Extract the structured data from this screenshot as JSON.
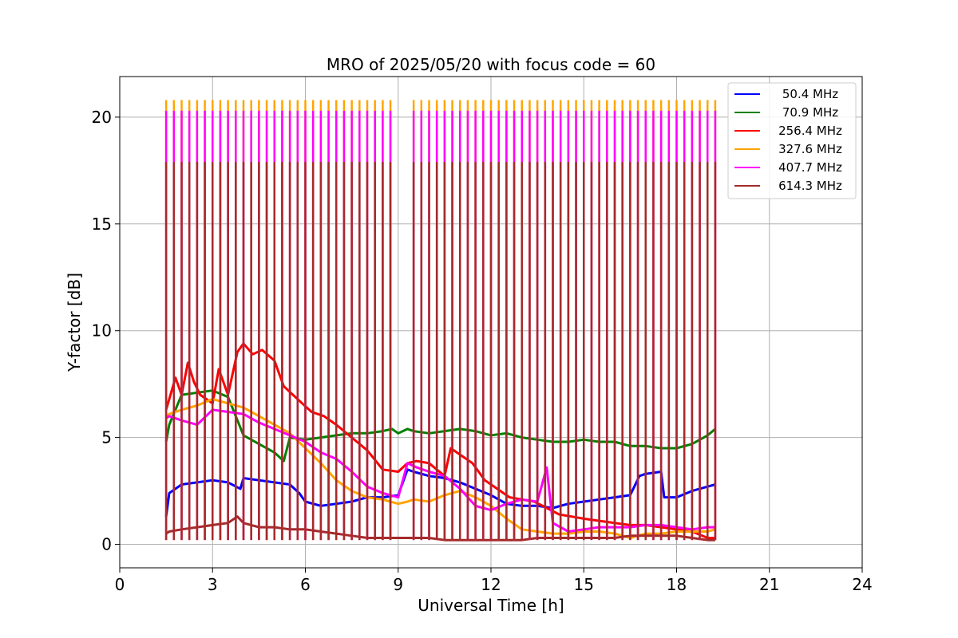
{
  "chart_data": {
    "type": "line",
    "title": "MRO of 2025/05/20 with focus code = 60",
    "xlabel": "Universal Time [h]",
    "ylabel": "Y-factor [dB]",
    "xlim": [
      0,
      24
    ],
    "ylim": [
      -1.1,
      21.9
    ],
    "xticks": [
      0,
      3,
      6,
      9,
      12,
      15,
      18,
      21,
      24
    ],
    "yticks": [
      0,
      5,
      10,
      15,
      20
    ],
    "grid": true,
    "legend_position": "upper-right",
    "spikes": {
      "description_note": "",
      "start_time": 1.5,
      "spacing": 0.25,
      "gap_start": 8.9,
      "gap_end": 9.45,
      "end_time": 19.25,
      "peak_values": {
        "50.4 MHz": 17.9,
        "70.9 MHz": 17.9,
        "256.4 MHz": 17.9,
        "327.6 MHz": 20.8,
        "407.7 MHz": 20.3,
        "614.3 MHz": 17.9
      }
    },
    "series": [
      {
        "name": "  50.4 MHz",
        "color": "#0000ff",
        "x": [
          1.5,
          1.6,
          2.0,
          2.5,
          3.0,
          3.5,
          3.9,
          4.0,
          4.5,
          5.0,
          5.5,
          5.8,
          6.0,
          6.5,
          7.0,
          7.5,
          8.0,
          8.5,
          9.0,
          9.3,
          9.5,
          10.0,
          10.5,
          11.0,
          11.5,
          12.0,
          12.5,
          13.0,
          13.5,
          14.0,
          14.5,
          15.0,
          15.5,
          16.0,
          16.5,
          16.8,
          17.0,
          17.5,
          17.6,
          18.0,
          18.5,
          19.0,
          19.25
        ],
        "y": [
          1.3,
          2.4,
          2.8,
          2.9,
          3.0,
          2.9,
          2.6,
          3.1,
          3.0,
          2.9,
          2.8,
          2.4,
          2.0,
          1.8,
          1.9,
          2.0,
          2.2,
          2.2,
          2.3,
          3.5,
          3.4,
          3.2,
          3.1,
          2.9,
          2.6,
          2.3,
          1.9,
          1.8,
          1.8,
          1.7,
          1.9,
          2.0,
          2.1,
          2.2,
          2.3,
          3.2,
          3.3,
          3.4,
          2.2,
          2.2,
          2.5,
          2.7,
          2.8
        ]
      },
      {
        "name": "  70.9 MHz",
        "color": "#008000",
        "x": [
          1.5,
          1.6,
          2.0,
          2.5,
          3.0,
          3.5,
          4.0,
          4.5,
          5.0,
          5.3,
          5.5,
          6.0,
          6.5,
          7.0,
          7.5,
          8.0,
          8.5,
          8.8,
          9.0,
          9.3,
          9.5,
          10.0,
          10.5,
          11.0,
          11.5,
          12.0,
          12.5,
          13.0,
          13.5,
          14.0,
          14.5,
          15.0,
          15.5,
          16.0,
          16.5,
          17.0,
          17.5,
          18.0,
          18.5,
          19.0,
          19.25
        ],
        "y": [
          4.8,
          5.6,
          7.0,
          7.1,
          7.2,
          6.9,
          5.1,
          4.7,
          4.3,
          3.9,
          5.0,
          4.9,
          5.0,
          5.1,
          5.2,
          5.2,
          5.3,
          5.4,
          5.2,
          5.4,
          5.3,
          5.2,
          5.3,
          5.4,
          5.3,
          5.1,
          5.2,
          5.0,
          4.9,
          4.8,
          4.8,
          4.9,
          4.8,
          4.8,
          4.6,
          4.6,
          4.5,
          4.5,
          4.7,
          5.1,
          5.4
        ]
      },
      {
        "name": "256.4 MHz",
        "color": "#ff0000",
        "x": [
          1.5,
          1.6,
          1.8,
          2.0,
          2.2,
          2.4,
          2.6,
          3.0,
          3.2,
          3.5,
          3.8,
          4.0,
          4.3,
          4.6,
          5.0,
          5.3,
          5.6,
          5.9,
          6.2,
          6.6,
          7.0,
          7.5,
          8.0,
          8.5,
          9.0,
          9.3,
          9.6,
          10.0,
          10.5,
          10.7,
          11.0,
          11.4,
          11.8,
          12.2,
          12.6,
          13.0,
          13.4,
          13.8,
          14.2,
          14.6,
          15.0,
          15.5,
          16.0,
          16.5,
          17.0,
          17.5,
          18.0,
          18.5,
          19.0,
          19.25
        ],
        "y": [
          6.3,
          6.8,
          7.8,
          7.0,
          8.5,
          7.6,
          7.0,
          6.6,
          8.2,
          7.0,
          9.0,
          9.4,
          8.9,
          9.1,
          8.6,
          7.4,
          7.0,
          6.6,
          6.2,
          6.0,
          5.6,
          5.0,
          4.4,
          3.5,
          3.4,
          3.8,
          3.9,
          3.8,
          3.2,
          4.5,
          4.2,
          3.8,
          3.0,
          2.6,
          2.2,
          2.1,
          2.0,
          1.7,
          1.4,
          1.3,
          1.2,
          1.1,
          1.0,
          0.9,
          0.9,
          0.8,
          0.7,
          0.6,
          0.3,
          0.3
        ]
      },
      {
        "name": "327.6 MHz",
        "color": "#ffa500",
        "x": [
          1.5,
          1.6,
          2.0,
          2.5,
          3.0,
          3.5,
          4.0,
          4.5,
          5.0,
          5.5,
          6.0,
          6.5,
          7.0,
          7.5,
          8.0,
          8.5,
          9.0,
          9.3,
          9.5,
          10.0,
          10.5,
          11.0,
          11.5,
          12.0,
          12.5,
          13.0,
          13.5,
          14.0,
          14.5,
          15.0,
          15.5,
          16.0,
          16.5,
          17.0,
          17.5,
          18.0,
          18.5,
          19.0,
          19.25
        ],
        "y": [
          6.0,
          6.1,
          6.3,
          6.5,
          6.8,
          6.6,
          6.4,
          6.0,
          5.6,
          5.2,
          4.5,
          3.8,
          3.0,
          2.5,
          2.2,
          2.1,
          1.9,
          2.0,
          2.1,
          2.0,
          2.3,
          2.5,
          2.2,
          1.8,
          1.2,
          0.7,
          0.6,
          0.5,
          0.5,
          0.6,
          0.6,
          0.5,
          0.3,
          0.5,
          0.5,
          0.6,
          0.6,
          0.6,
          0.7
        ]
      },
      {
        "name": "407.7 MHz",
        "color": "#ff00ff",
        "x": [
          1.5,
          1.6,
          2.0,
          2.5,
          3.0,
          3.5,
          4.0,
          4.5,
          5.0,
          5.5,
          6.0,
          6.5,
          7.0,
          7.5,
          8.0,
          8.5,
          9.0,
          9.3,
          9.6,
          10.0,
          10.5,
          11.0,
          11.5,
          12.0,
          12.5,
          13.0,
          13.5,
          13.8,
          14.0,
          14.5,
          15.0,
          15.5,
          16.0,
          16.5,
          17.0,
          17.5,
          18.0,
          18.5,
          19.0,
          19.25
        ],
        "y": [
          5.9,
          6.0,
          5.8,
          5.6,
          6.3,
          6.2,
          6.1,
          5.7,
          5.4,
          5.1,
          4.8,
          4.3,
          4.0,
          3.4,
          2.7,
          2.4,
          2.2,
          3.8,
          3.6,
          3.4,
          3.2,
          2.6,
          1.8,
          1.6,
          1.9,
          2.1,
          2.0,
          3.6,
          1.0,
          0.6,
          0.7,
          0.8,
          0.8,
          0.8,
          0.9,
          0.9,
          0.8,
          0.7,
          0.8,
          0.8
        ]
      },
      {
        "name": "614.3 MHz",
        "color": "#a52a2a",
        "x": [
          1.5,
          1.6,
          2.0,
          2.5,
          3.0,
          3.5,
          3.8,
          4.0,
          4.5,
          5.0,
          5.5,
          6.0,
          6.5,
          7.0,
          7.5,
          8.0,
          8.5,
          9.0,
          9.5,
          10.0,
          10.5,
          11.0,
          11.5,
          12.0,
          12.5,
          13.0,
          13.5,
          14.0,
          14.5,
          15.0,
          15.5,
          16.0,
          16.5,
          17.0,
          17.5,
          18.0,
          18.5,
          19.0,
          19.25
        ],
        "y": [
          0.5,
          0.6,
          0.7,
          0.8,
          0.9,
          1.0,
          1.3,
          1.0,
          0.8,
          0.8,
          0.7,
          0.7,
          0.6,
          0.5,
          0.4,
          0.3,
          0.3,
          0.3,
          0.3,
          0.3,
          0.2,
          0.2,
          0.2,
          0.2,
          0.2,
          0.2,
          0.3,
          0.3,
          0.3,
          0.3,
          0.3,
          0.3,
          0.4,
          0.4,
          0.4,
          0.4,
          0.3,
          0.2,
          0.2
        ]
      }
    ]
  }
}
